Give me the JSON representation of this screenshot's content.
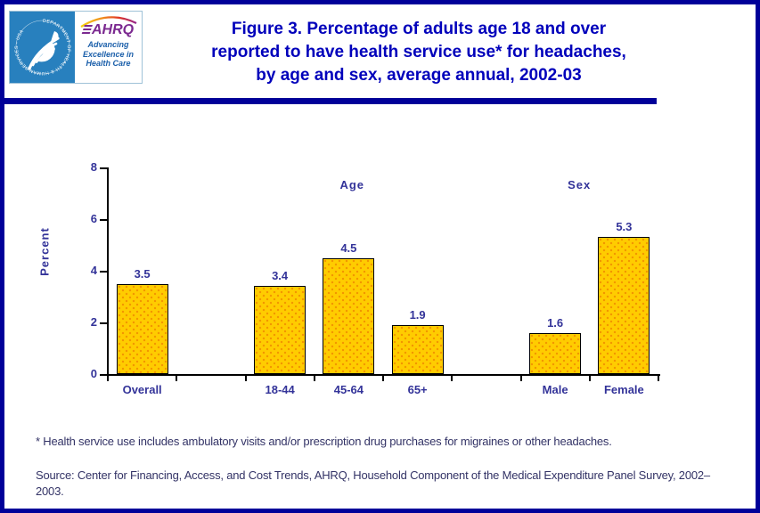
{
  "header": {
    "logo": {
      "hhs_seal_text": "DEPARTMENT OF HEALTH & HUMAN SERVICES - USA",
      "ahrq_acronym": "AHRQ",
      "ahrq_tagline_lines": [
        "Advancing",
        "Excellence in",
        "Health Care"
      ]
    },
    "title_lines": [
      "Figure 3. Percentage of adults age 18 and over",
      "reported to have health service use* for headaches,",
      "by age and sex, average annual, 2002-03"
    ]
  },
  "chart_data": {
    "type": "bar",
    "title": "",
    "xlabel": "",
    "ylabel": "Percent",
    "ylim": [
      0,
      8
    ],
    "yticks": [
      0,
      2,
      4,
      6,
      8
    ],
    "grid": false,
    "legend": "none",
    "categories": [
      "Overall",
      "18-44",
      "45-64",
      "65+",
      "Male",
      "Female"
    ],
    "values": [
      3.5,
      3.4,
      4.5,
      1.9,
      1.6,
      5.3
    ],
    "value_labels": [
      "3.5",
      "3.4",
      "4.5",
      "1.9",
      "1.6",
      "5.3"
    ],
    "category_slots": [
      0,
      2,
      3,
      4,
      6,
      7
    ],
    "group_labels": [
      {
        "label": "Age",
        "center_slot": 3.55
      },
      {
        "label": "Sex",
        "center_slot": 6.85
      }
    ],
    "bar_fill_color": "#FFCC00",
    "bar_dot_color": "#F29500",
    "bar_border_color": "#000000",
    "axis_color": "#000000",
    "label_color": "#333399"
  },
  "footnote": "* Health service use includes ambulatory visits and/or prescription drug purchases for migraines or other headaches.",
  "source": "Source: Center for Financing, Access, and Cost Trends, AHRQ, Household Component of the Medical Expenditure Panel Survey, 2002–2003.",
  "colors": {
    "page_border": "#000099",
    "title_text": "#0000BB",
    "title_rule": "#000099",
    "chart_text": "#333399",
    "note_text": "#333366",
    "hhs_blue": "#2880BE",
    "ahrq_purple": "#7B2990",
    "ahrq_tagline_blue": "#1B5FAA"
  }
}
